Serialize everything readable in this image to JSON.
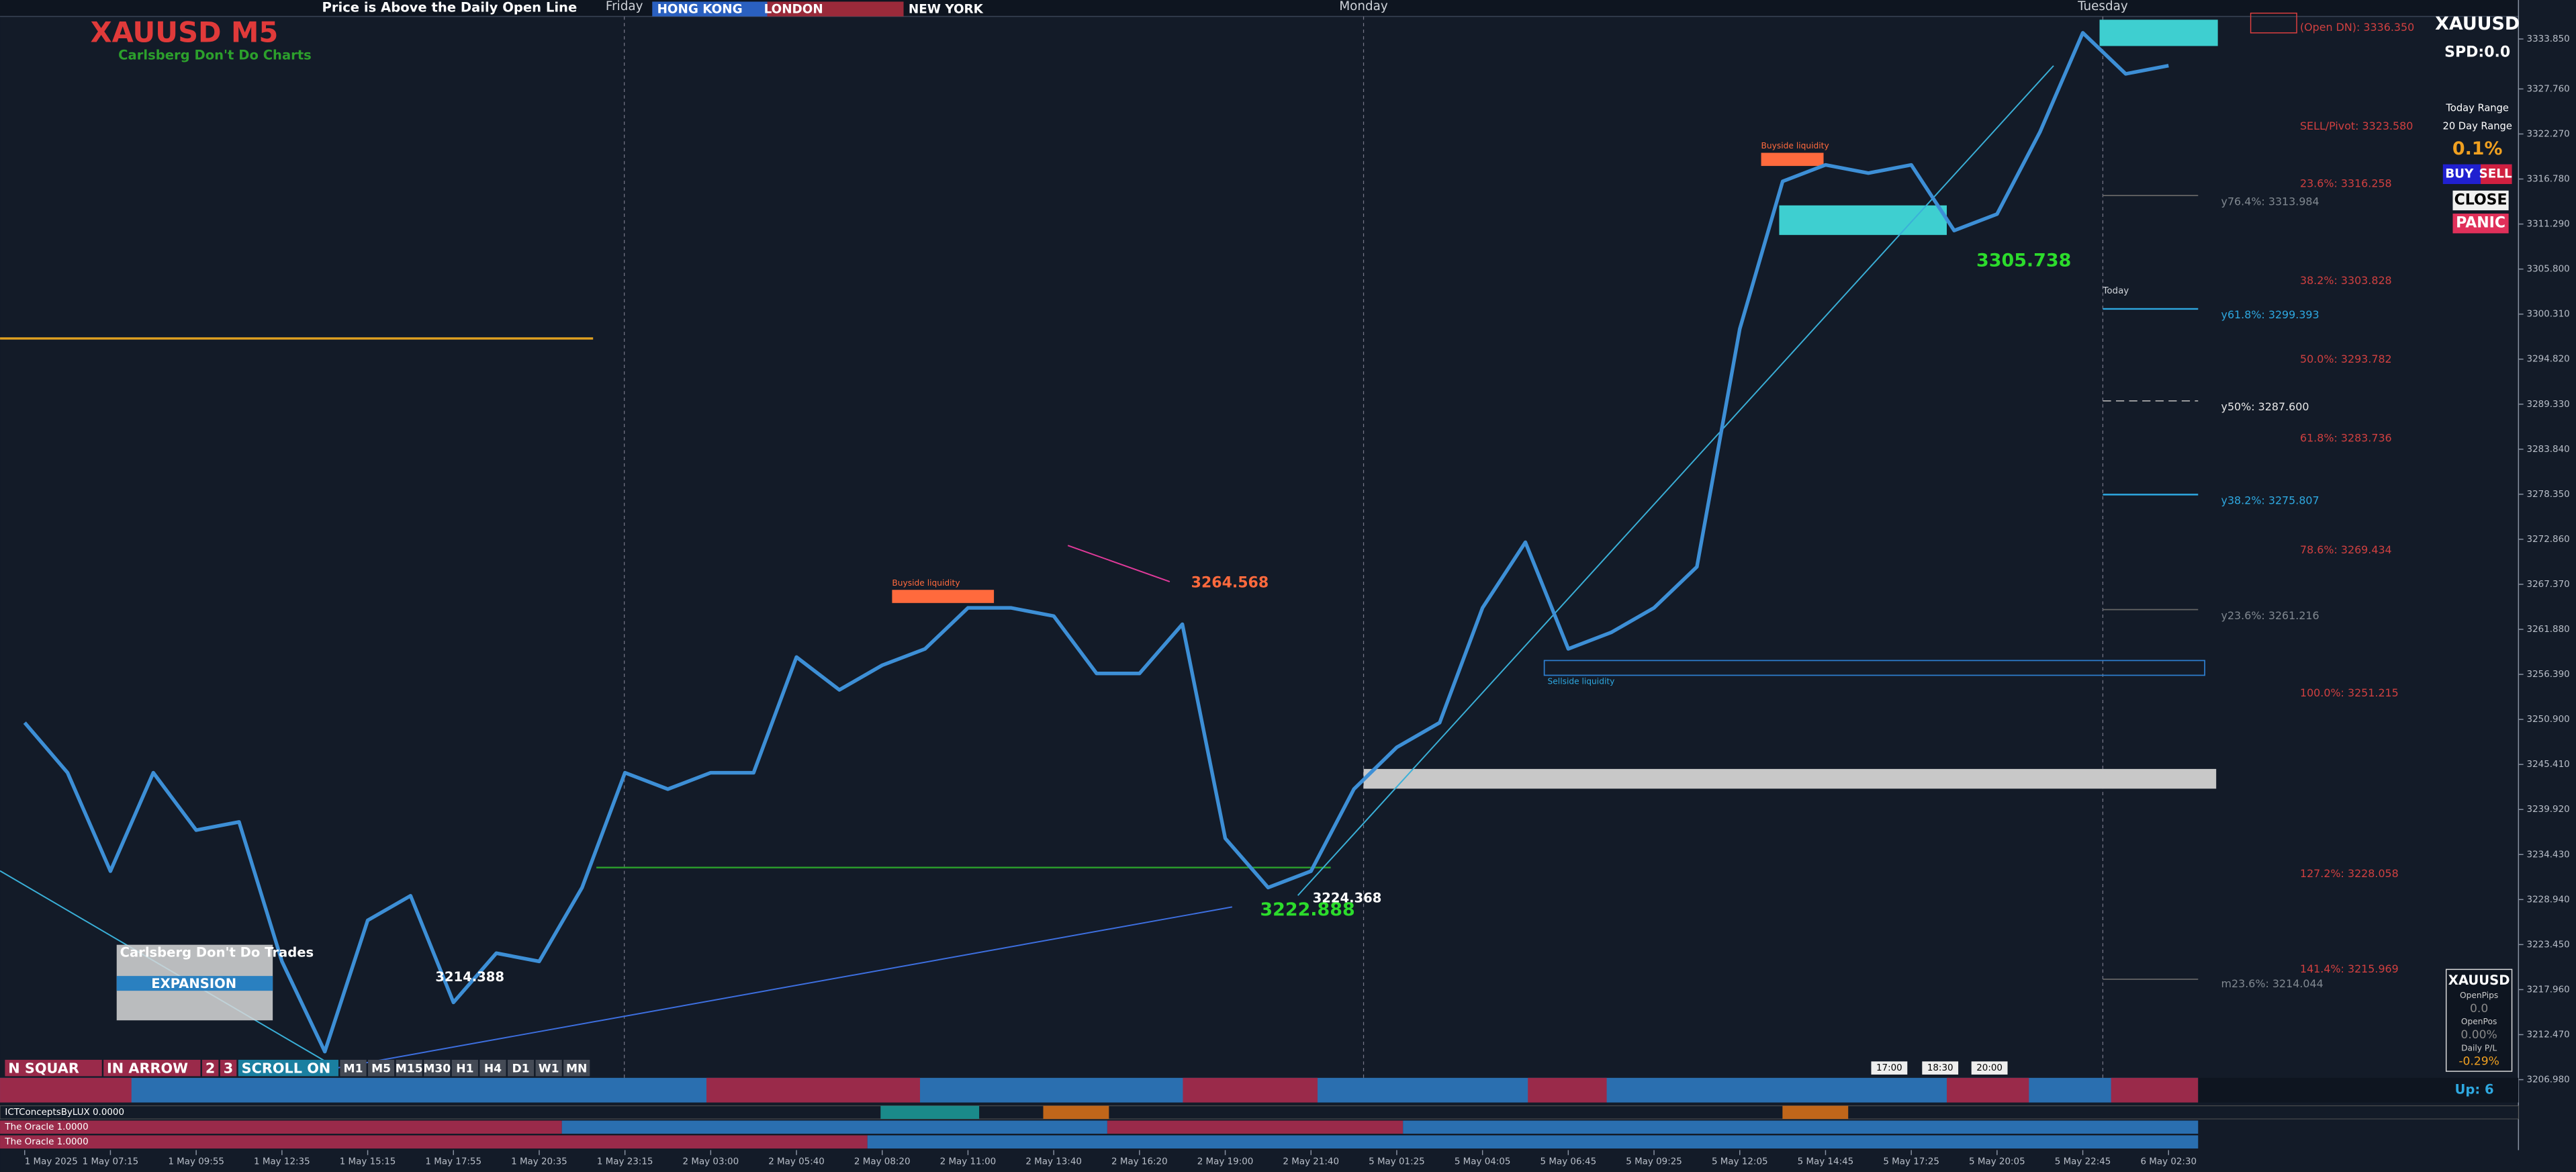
{
  "header": {
    "symbol": "XAUUSD M5",
    "tagline": "Carlsberg Don't Do Charts",
    "status": "Price is Above the Daily Open Line",
    "sessions": [
      "HONG KONG",
      "LONDON",
      "NEW YORK"
    ]
  },
  "days": [
    "Friday",
    "Monday",
    "Tuesday",
    "Today"
  ],
  "chart_data": {
    "type": "line",
    "x": [
      "1 May 2025",
      null,
      "1 May 07:15",
      null,
      "1 May 09:55",
      null,
      "1 May 12:35",
      null,
      "1 May 15:15",
      null,
      "1 May 17:55",
      null,
      "1 May 20:35",
      null,
      "1 May 23:15",
      null,
      "2 May 03:00",
      null,
      "2 May 05:40",
      null,
      "2 May 08:20",
      null,
      "2 May 11:00",
      null,
      "2 May 13:40",
      null,
      "2 May 16:20",
      null,
      "2 May 19:00",
      null,
      "2 May 21:40",
      null,
      "5 May 01:25",
      null,
      "5 May 04:05",
      null,
      "5 May 06:45",
      null,
      "5 May 09:25",
      null,
      "5 May 12:05",
      null,
      "5 May 14:45",
      null,
      "5 May 17:25",
      null,
      "5 May 20:05",
      null,
      "5 May 22:45",
      null,
      "6 May 02:30"
    ],
    "series": [
      {
        "color": "#3d8fd6",
        "values": [
          3250.5,
          3244.4,
          3232.4,
          3244.4,
          3237.4,
          3238.4,
          3221.4,
          3210.4,
          3226.4,
          3229.4,
          3216.4,
          3222.4,
          3221.4,
          3230.4,
          3244.4,
          3242.4,
          3244.4,
          3244.4,
          3258.5,
          3254.5,
          3257.5,
          3259.5,
          3264.5,
          3264.5,
          3263.5,
          3256.5,
          3256.5,
          3262.5,
          3236.4,
          3230.4,
          3232.4,
          3242.4,
          3247.5,
          3250.5,
          3264.5,
          3272.5,
          3259.5,
          3261.5,
          3264.5,
          3269.5,
          3298.5,
          3316.5,
          3318.5,
          3317.5,
          3318.5,
          3310.5,
          3312.5,
          3322.5,
          3334.6,
          3329.6,
          3330.6
        ]
      }
    ],
    "ylim": [
      3206.4,
      3336.6
    ],
    "yticks": [
      {
        "value": 3333.85,
        "label": "3333.850"
      },
      {
        "value": 3327.76,
        "label": "3327.760"
      },
      {
        "value": 3322.27,
        "label": "3322.270"
      },
      {
        "value": 3316.78,
        "label": "3316.780"
      },
      {
        "value": 3311.29,
        "label": "3311.290"
      },
      {
        "value": 3305.8,
        "label": "3305.800"
      },
      {
        "value": 3300.31,
        "label": "3300.310"
      },
      {
        "value": 3294.82,
        "label": "3294.820"
      },
      {
        "value": 3289.33,
        "label": "3289.330"
      },
      {
        "value": 3283.84,
        "label": "3283.840"
      },
      {
        "value": 3278.35,
        "label": "3278.350"
      },
      {
        "value": 3272.86,
        "label": "3272.860"
      },
      {
        "value": 3267.37,
        "label": "3267.370"
      },
      {
        "value": 3261.88,
        "label": "3261.880"
      },
      {
        "value": 3256.39,
        "label": "3256.390"
      },
      {
        "value": 3250.9,
        "label": "3250.900"
      },
      {
        "value": 3245.41,
        "label": "3245.410"
      },
      {
        "value": 3239.92,
        "label": "3239.920"
      },
      {
        "value": 3234.43,
        "label": "3234.430"
      },
      {
        "value": 3228.94,
        "label": "3228.940"
      },
      {
        "value": 3223.45,
        "label": "3223.450"
      },
      {
        "value": 3217.96,
        "label": "3217.960"
      },
      {
        "value": 3212.47,
        "label": "3212.470"
      },
      {
        "value": 3206.98,
        "label": "3206.980"
      }
    ],
    "grid": false
  },
  "annotations": {
    "zones": [
      "Buyside liquidity",
      "Buyside liquidity",
      "Sellside liquidity"
    ],
    "prices": [
      "3264.568",
      "3222.888",
      "3224.368",
      "3214.388",
      "3305.738"
    ]
  },
  "levels": [
    "(Open DN): 3336.350",
    "SELL/Pivot: 3323.580",
    "23.6%: 3316.258",
    "y76.4%: 3313.984",
    "38.2%: 3303.828",
    "y61.8%: 3299.393",
    "50.0%: 3293.782",
    "y50%: 3287.600",
    "61.8%: 3283.736",
    "y38.2%: 3275.807",
    "78.6%: 3269.434",
    "y23.6%: 3261.216",
    "100.0%: 3251.215",
    "127.2%: 3228.058",
    "141.4%: 3215.969",
    "m23.6%: 3214.044"
  ],
  "panel": {
    "symbol": "XAUUSD",
    "spread": "SPD:0.0",
    "ranges": [
      "Today Range",
      "20 Day Range"
    ],
    "percent": "0.1%",
    "buttons": [
      "BUY",
      "SELL",
      "CLOSE",
      "PANIC"
    ]
  },
  "account": {
    "symbol": "XAUUSD",
    "rows": [
      "OpenPips",
      "0.0",
      "OpenPos",
      "0.00%",
      "Daily P/L",
      "-0.29%"
    ]
  },
  "toolbar": {
    "title": "Carlsberg Don't Do Trades",
    "expansion": "EXPANSION",
    "buttons": [
      "N SQUAR",
      "IN ARROW",
      "2",
      "3",
      "SCROLL ON"
    ],
    "timeframes": [
      "M1",
      "M5",
      "M15",
      "M30",
      "H1",
      "H4",
      "D1",
      "W1",
      "MN"
    ]
  },
  "time_tags": [
    "17:00",
    "18:30",
    "20:00"
  ],
  "indicators": {
    "trend": "Up: 6",
    "rows": [
      "ICTConceptsByLUX 0.0000",
      "The Oracle 1.0000",
      "The Oracle 1.0000"
    ]
  }
}
